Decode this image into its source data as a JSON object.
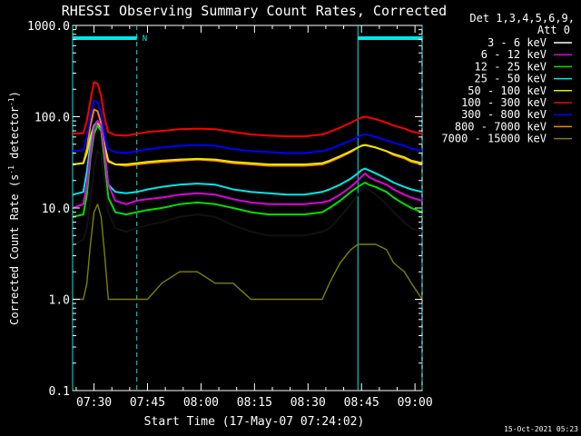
{
  "chart_data": {
    "type": "line",
    "title": "RHESSI Observing Summary Count Rates, Corrected",
    "xlabel": "Start Time (17-May-07 07:24:02)",
    "ylabel_main": "Corrected Count Rate (s",
    "ylabel_sup1": "-1",
    "ylabel_mid": " detector",
    "ylabel_sup2": "-1",
    "ylabel_end": ")",
    "y_scale": "log",
    "ylim": [
      0.1,
      1000
    ],
    "xlim_minutes": [
      0,
      98
    ],
    "x_ticks": [
      {
        "label": "07:30",
        "minutes": 6
      },
      {
        "label": "07:45",
        "minutes": 21
      },
      {
        "label": "08:00",
        "minutes": 36
      },
      {
        "label": "08:15",
        "minutes": 51
      },
      {
        "label": "08:30",
        "minutes": 66
      },
      {
        "label": "08:45",
        "minutes": 81
      },
      {
        "label": "09:00",
        "minutes": 96
      }
    ],
    "y_ticks": [
      {
        "label": "1000.0",
        "value": 1000
      },
      {
        "label": "100.0",
        "value": 100
      },
      {
        "label": "10.0",
        "value": 10
      },
      {
        "label": "1.0",
        "value": 1
      },
      {
        "label": "0.1",
        "value": 0.1
      }
    ],
    "legend_header": [
      "Det 1,3,4,5,6,9,",
      "Att 0"
    ],
    "legend_placement": "right",
    "series": [
      {
        "name": "3 - 6 keV",
        "color": "#000000",
        "x": [
          0,
          3,
          4,
          5,
          6,
          7,
          8,
          9,
          10,
          12,
          15,
          18,
          21,
          25,
          30,
          35,
          40,
          45,
          50,
          55,
          60,
          65,
          70,
          72,
          75,
          78,
          80,
          81,
          82,
          83,
          85,
          88,
          90,
          93,
          95,
          98
        ],
        "y": [
          4,
          4.5,
          6,
          12,
          28,
          42,
          38,
          20,
          9,
          6,
          5.5,
          6,
          6.5,
          7,
          8,
          8.5,
          8,
          6.5,
          5.5,
          5,
          5,
          5,
          5.5,
          6,
          8,
          11,
          14,
          16,
          17,
          16,
          14,
          11,
          9,
          7,
          6,
          5.5
        ]
      },
      {
        "name": "6 - 12 keV",
        "color": "#e000e0",
        "x": [
          0,
          3,
          4,
          5,
          6,
          7,
          8,
          9,
          10,
          12,
          15,
          18,
          21,
          25,
          30,
          35,
          40,
          45,
          50,
          55,
          60,
          65,
          70,
          72,
          75,
          78,
          80,
          81,
          82,
          83,
          85,
          88,
          90,
          93,
          95,
          98
        ],
        "y": [
          10,
          11,
          18,
          40,
          75,
          90,
          80,
          40,
          18,
          12,
          11,
          12,
          12.5,
          13,
          14,
          14.5,
          14,
          12.5,
          11.5,
          11,
          11,
          11,
          11.5,
          12,
          14,
          17,
          20,
          22,
          24,
          22,
          20,
          18,
          16,
          14,
          13,
          12
        ]
      },
      {
        "name": "12 - 25 keV",
        "color": "#00e000",
        "x": [
          0,
          3,
          4,
          5,
          6,
          7,
          8,
          9,
          10,
          12,
          15,
          18,
          21,
          25,
          30,
          35,
          40,
          45,
          50,
          55,
          60,
          65,
          70,
          72,
          75,
          78,
          80,
          81,
          82,
          83,
          85,
          88,
          90,
          93,
          95,
          98
        ],
        "y": [
          8,
          8.5,
          14,
          35,
          65,
          80,
          70,
          32,
          13,
          9,
          8.5,
          9,
          9.5,
          10,
          11,
          11.5,
          11,
          10,
          9,
          8.5,
          8.5,
          8.5,
          9,
          10,
          12,
          15,
          17,
          18,
          19,
          18,
          17,
          15,
          13,
          11,
          10,
          9
        ]
      },
      {
        "name": "25 - 50 keV",
        "color": "#00e8e8",
        "x": [
          0,
          3,
          4,
          5,
          6,
          7,
          8,
          9,
          10,
          12,
          15,
          18,
          21,
          25,
          30,
          35,
          40,
          45,
          50,
          55,
          60,
          65,
          70,
          72,
          75,
          78,
          80,
          81,
          82,
          83,
          85,
          88,
          90,
          93,
          95,
          98
        ],
        "y": [
          14,
          15,
          25,
          50,
          80,
          90,
          80,
          40,
          18,
          15,
          14.5,
          15,
          16,
          17,
          18,
          18.5,
          18,
          16,
          15,
          14.5,
          14,
          14,
          15,
          16,
          18,
          21,
          24,
          26,
          27,
          26,
          24,
          21,
          19,
          17,
          16,
          15
        ]
      },
      {
        "name": "50 - 100 keV",
        "color": "#e8e800",
        "x": [
          0,
          3,
          4,
          5,
          6,
          7,
          8,
          9,
          10,
          12,
          15,
          18,
          21,
          25,
          30,
          35,
          40,
          45,
          50,
          55,
          60,
          65,
          70,
          72,
          75,
          78,
          80,
          81,
          82,
          83,
          85,
          88,
          90,
          93,
          95,
          98
        ],
        "y": [
          30,
          31,
          40,
          60,
          80,
          85,
          75,
          48,
          33,
          30,
          30,
          31,
          32,
          33,
          34,
          34.5,
          34,
          32,
          31,
          30,
          30,
          30,
          31,
          33,
          37,
          42,
          46,
          48,
          49,
          48,
          46,
          42,
          39,
          36,
          33,
          31
        ]
      },
      {
        "name": "100 - 300 keV",
        "color": "#ff0000",
        "x": [
          0,
          3,
          4,
          5,
          6,
          7,
          8,
          9,
          10,
          12,
          15,
          18,
          21,
          25,
          30,
          35,
          40,
          45,
          50,
          55,
          60,
          65,
          70,
          72,
          75,
          78,
          80,
          81,
          82,
          83,
          85,
          88,
          90,
          93,
          95,
          98
        ],
        "y": [
          65,
          66,
          90,
          150,
          240,
          230,
          170,
          95,
          68,
          63,
          62,
          65,
          68,
          70,
          73,
          74,
          73,
          68,
          64,
          62,
          61,
          61,
          64,
          68,
          76,
          86,
          94,
          98,
          100,
          98,
          94,
          86,
          80,
          74,
          69,
          65
        ]
      },
      {
        "name": "300 - 800 keV",
        "color": "#0000ff",
        "x": [
          0,
          3,
          4,
          5,
          6,
          7,
          8,
          9,
          10,
          12,
          15,
          18,
          21,
          25,
          30,
          35,
          40,
          45,
          50,
          55,
          60,
          65,
          70,
          72,
          75,
          78,
          80,
          81,
          82,
          83,
          85,
          88,
          90,
          93,
          95,
          98
        ],
        "y": [
          42,
          43,
          60,
          100,
          150,
          145,
          110,
          62,
          44,
          41,
          40,
          42,
          44,
          46,
          48,
          49,
          48,
          44,
          42,
          41,
          40,
          40,
          42,
          44,
          49,
          55,
          60,
          63,
          64,
          63,
          60,
          55,
          52,
          48,
          45,
          42
        ]
      },
      {
        "name": "800 - 7000 keV",
        "color": "#ff8000",
        "x": [
          0,
          3,
          4,
          5,
          6,
          7,
          8,
          9,
          10,
          12,
          15,
          18,
          21,
          25,
          30,
          35,
          40,
          45,
          50,
          55,
          60,
          65,
          70,
          72,
          75,
          78,
          80,
          81,
          82,
          83,
          85,
          88,
          90,
          93,
          95,
          98
        ],
        "y": [
          30,
          31,
          45,
          80,
          120,
          115,
          85,
          45,
          32,
          30,
          29,
          30,
          31,
          32,
          33,
          34,
          33,
          31,
          30,
          29,
          29,
          29,
          30,
          32,
          36,
          41,
          46,
          48,
          49,
          48,
          46,
          42,
          38,
          35,
          32,
          30
        ]
      },
      {
        "name": "7000 - 15000 keV",
        "color": "#808000",
        "x": [
          0,
          3,
          4,
          5,
          6,
          7,
          8,
          9,
          10,
          12,
          15,
          18,
          21,
          25,
          30,
          35,
          40,
          45,
          50,
          55,
          60,
          65,
          70,
          72,
          75,
          78,
          80,
          81,
          82,
          83,
          85,
          88,
          90,
          93,
          95,
          98
        ],
        "y": [
          1,
          1,
          1.5,
          4,
          9,
          11,
          8,
          3,
          1,
          1,
          1,
          1,
          1,
          1.5,
          2,
          2,
          1.5,
          1.5,
          1,
          1,
          1,
          1,
          1,
          1.5,
          2.5,
          3.5,
          4,
          4,
          4,
          4,
          4,
          3.5,
          2.5,
          2,
          1.5,
          1
        ]
      }
    ],
    "eclipse_bars": [
      [
        0,
        18
      ],
      [
        80,
        98
      ]
    ],
    "saa_label": "N",
    "vertical_markers": [
      {
        "minutes": 0,
        "style": "solid"
      },
      {
        "minutes": 18,
        "style": "dashed"
      },
      {
        "minutes": 80,
        "style": "solid"
      },
      {
        "minutes": 98,
        "style": "dashed"
      }
    ],
    "timestamp": "15-Oct-2021 05:23"
  }
}
